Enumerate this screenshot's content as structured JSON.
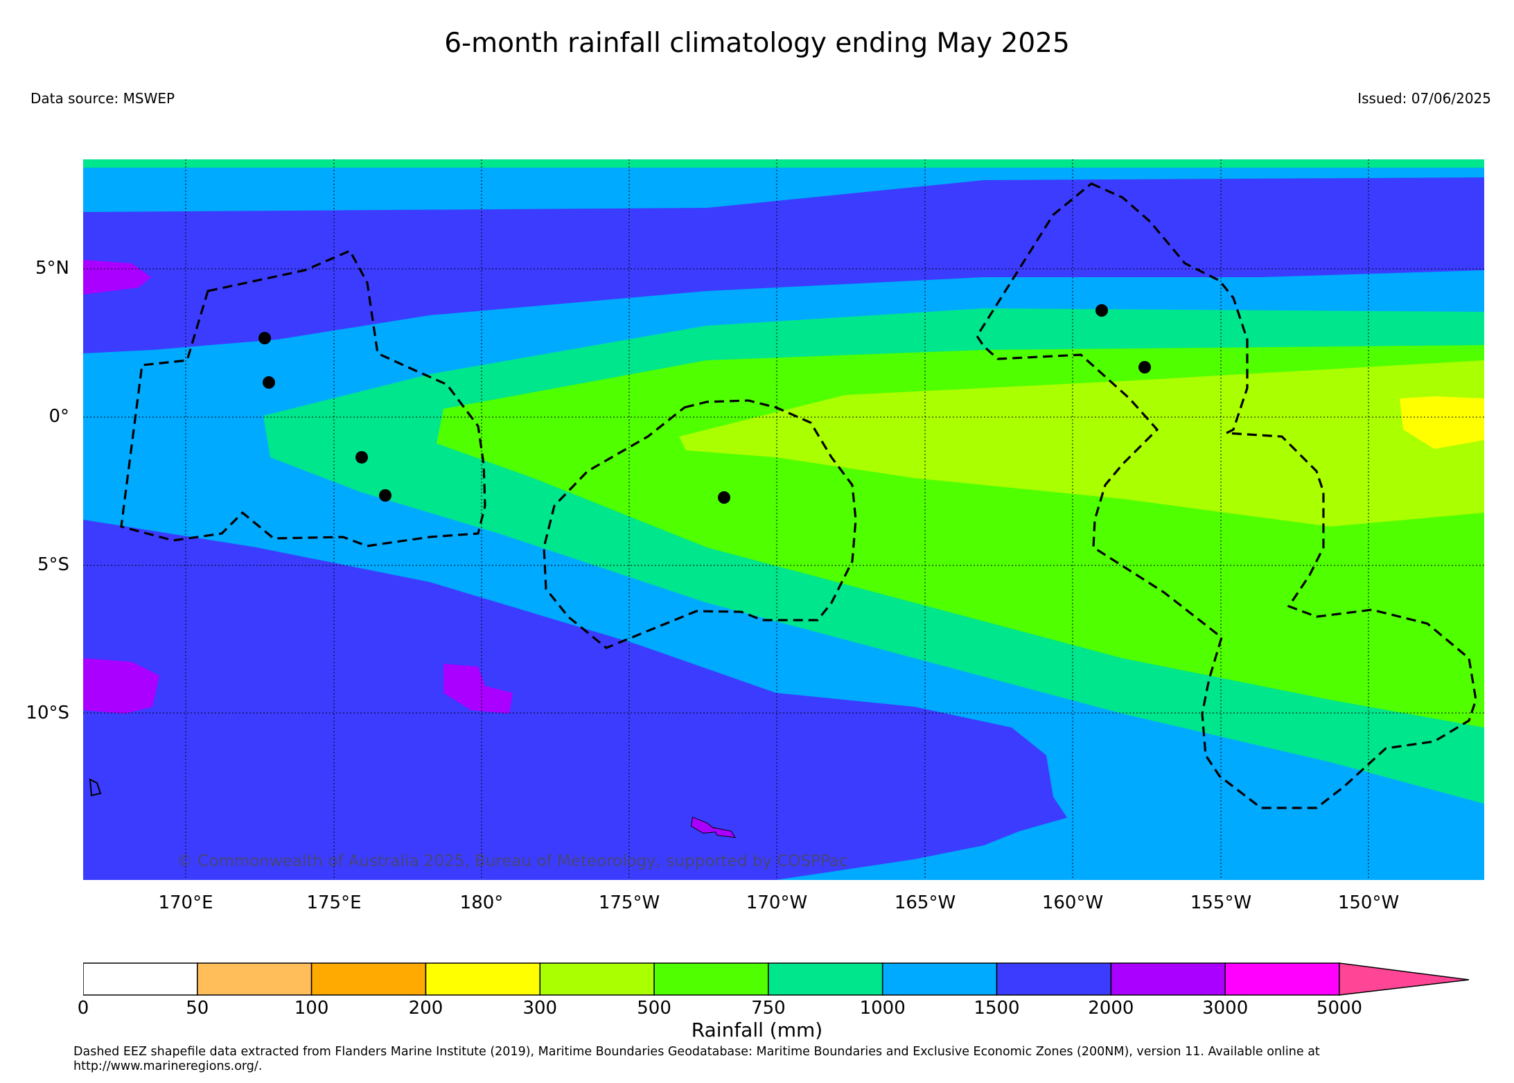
{
  "title": "6-month rainfall climatology ending May 2025",
  "data_source": "Data source: MSWEP",
  "issued": "Issued: 07/06/2025",
  "copyright": "© Commonwealth of Australia 2025, Bureau of Meteorology, supported by COSPPac",
  "lat_labels": [
    "5°N",
    "0°",
    "5°S",
    "10°S"
  ],
  "lon_labels": [
    "170°E",
    "175°E",
    "180°",
    "175°W",
    "170°W",
    "165°W",
    "160°W",
    "155°W",
    "150°W"
  ],
  "colorbar": {
    "label": "Rainfall (mm)",
    "ticks": [
      "0",
      "50",
      "100",
      "200",
      "300",
      "500",
      "750",
      "1000",
      "1500",
      "2000",
      "3000",
      "5000"
    ],
    "colors": [
      "#ffffff",
      "#ffbe5a",
      "#ffaa00",
      "#ffff00",
      "#aaff00",
      "#50ff00",
      "#00e68c",
      "#00aaff",
      "#3c3cff",
      "#aa00ff",
      "#ff00ff",
      "#ff4696"
    ]
  },
  "footnote": "Dashed EEZ shapefile data extracted from Flanders Marine Institute (2019), Maritime Boundaries Geodatabase: Maritime Boundaries and Exclusive Economic Zones (200NM), version 11. Available online at http://www.marineregions.org/."
}
